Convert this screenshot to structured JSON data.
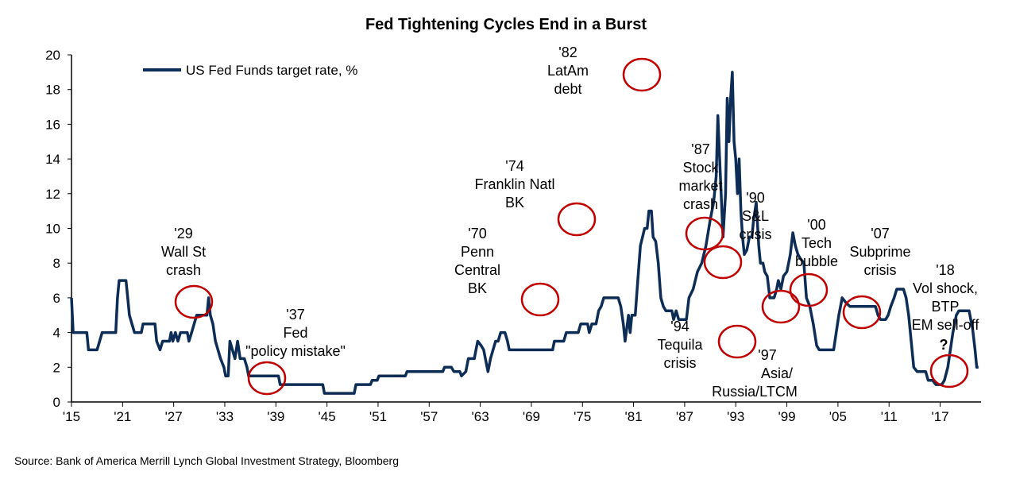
{
  "chart_data": {
    "type": "line",
    "title": "Fed Tightening Cycles End in a Burst",
    "source": "Source: Bank of America Merrill Lynch Global Investment Strategy, Bloomberg",
    "legend": {
      "placement": "top-left",
      "label": "US Fed Funds target rate, %"
    },
    "line_color": "#0d2d56",
    "circle_color": "#c00000",
    "grid": false,
    "xlim": [
      1915,
      2021.8
    ],
    "ylim": [
      0,
      20
    ],
    "yticks": [
      0,
      2,
      4,
      6,
      8,
      10,
      12,
      14,
      16,
      18,
      20
    ],
    "xticks": [
      1915,
      1921,
      1927,
      1933,
      1939,
      1945,
      1951,
      1957,
      1963,
      1969,
      1975,
      1981,
      1987,
      1993,
      1999,
      2005,
      2011,
      2017
    ],
    "xtick_labels": [
      "'15",
      "'21",
      "'27",
      "'33",
      "'39",
      "'45",
      "'51",
      "'57",
      "'63",
      "'69",
      "'75",
      "'81",
      "'87",
      "'93",
      "'99",
      "'05",
      "'11",
      "'17"
    ],
    "series": [
      {
        "name": "US Fed Funds target rate, %",
        "points": [
          [
            1915,
            6
          ],
          [
            1915.2,
            4
          ],
          [
            1916.8,
            4
          ],
          [
            1917,
            3
          ],
          [
            1918,
            3
          ],
          [
            1918.3,
            3.5
          ],
          [
            1918.6,
            4
          ],
          [
            1920.2,
            4
          ],
          [
            1920.4,
            6
          ],
          [
            1920.6,
            7
          ],
          [
            1921.4,
            7
          ],
          [
            1921.6,
            6
          ],
          [
            1921.8,
            5
          ],
          [
            1922.1,
            4.5
          ],
          [
            1922.4,
            4
          ],
          [
            1923.2,
            4
          ],
          [
            1923.4,
            4.5
          ],
          [
            1924.8,
            4.5
          ],
          [
            1925,
            3.5
          ],
          [
            1925.4,
            3
          ],
          [
            1925.7,
            3.5
          ],
          [
            1926.5,
            3.5
          ],
          [
            1926.7,
            4
          ],
          [
            1926.9,
            3.5
          ],
          [
            1927.2,
            4
          ],
          [
            1927.5,
            3.5
          ],
          [
            1927.8,
            4
          ],
          [
            1928.6,
            4
          ],
          [
            1928.8,
            3.5
          ],
          [
            1929.1,
            4
          ],
          [
            1929.4,
            4.5
          ],
          [
            1929.7,
            5
          ],
          [
            1930.9,
            5
          ],
          [
            1931.1,
            6
          ],
          [
            1931.3,
            5
          ],
          [
            1931.6,
            4.5
          ],
          [
            1931.9,
            3.5
          ],
          [
            1932.2,
            3
          ],
          [
            1932.5,
            2.5
          ],
          [
            1932.9,
            2
          ],
          [
            1933.1,
            1.5
          ],
          [
            1933.4,
            1.5
          ],
          [
            1933.6,
            3.5
          ],
          [
            1933.9,
            3
          ],
          [
            1934.2,
            2.5
          ],
          [
            1934.5,
            3.5
          ],
          [
            1934.8,
            2.5
          ],
          [
            1935.3,
            2.5
          ],
          [
            1935.6,
            2
          ],
          [
            1935.8,
            1.5
          ],
          [
            1939.3,
            1.5
          ],
          [
            1939.5,
            1
          ],
          [
            1944.5,
            1
          ],
          [
            1944.7,
            0.5
          ],
          [
            1948.2,
            0.5
          ],
          [
            1948.4,
            1
          ],
          [
            1950.1,
            1
          ],
          [
            1950.3,
            1.25
          ],
          [
            1950.9,
            1.25
          ],
          [
            1951.1,
            1.5
          ],
          [
            1954.2,
            1.5
          ],
          [
            1954.4,
            1.75
          ],
          [
            1958.6,
            1.75
          ],
          [
            1958.8,
            2
          ],
          [
            1959.6,
            2
          ],
          [
            1959.9,
            1.75
          ],
          [
            1960.6,
            1.75
          ],
          [
            1960.8,
            1.5
          ],
          [
            1961.3,
            1.75
          ],
          [
            1961.6,
            2.5
          ],
          [
            1962.3,
            2.5
          ],
          [
            1962.5,
            3
          ],
          [
            1962.7,
            3.5
          ],
          [
            1963.1,
            3.25
          ],
          [
            1963.4,
            3
          ],
          [
            1963.7,
            2.25
          ],
          [
            1963.9,
            1.75
          ],
          [
            1964.2,
            2.5
          ],
          [
            1964.5,
            3
          ],
          [
            1964.8,
            3.5
          ],
          [
            1965.1,
            3.5
          ],
          [
            1965.4,
            4
          ],
          [
            1965.9,
            4
          ],
          [
            1966.2,
            3.5
          ],
          [
            1966.4,
            3
          ],
          [
            1971.5,
            3
          ],
          [
            1971.7,
            3.5
          ],
          [
            1972.8,
            3.5
          ],
          [
            1973.1,
            4
          ],
          [
            1974.5,
            4
          ],
          [
            1974.8,
            4.5
          ],
          [
            1975.6,
            4.5
          ],
          [
            1975.8,
            4
          ],
          [
            1976.1,
            4.5
          ],
          [
            1976.6,
            4.5
          ],
          [
            1976.9,
            5.25
          ],
          [
            1977.2,
            5.5
          ],
          [
            1977.5,
            6
          ],
          [
            1979.2,
            6
          ],
          [
            1979.5,
            5.5
          ],
          [
            1979.8,
            4.5
          ],
          [
            1980,
            3.5
          ],
          [
            1980.4,
            5
          ],
          [
            1980.6,
            4
          ],
          [
            1980.8,
            5
          ],
          [
            1980.9,
            5
          ],
          [
            1981.2,
            5
          ],
          [
            1981.5,
            7
          ],
          [
            1981.8,
            9
          ],
          [
            1982.3,
            10
          ],
          [
            1982.6,
            10
          ],
          [
            1982.8,
            11
          ],
          [
            1983.1,
            11
          ],
          [
            1983.3,
            9.5
          ],
          [
            1983.6,
            9.25
          ],
          [
            1983.9,
            8
          ],
          [
            1984.2,
            6
          ],
          [
            1984.5,
            5.5
          ],
          [
            1984.8,
            5.25
          ],
          [
            1985.5,
            5.25
          ],
          [
            1985.7,
            4.75
          ],
          [
            1986,
            5.25
          ],
          [
            1986.3,
            4.75
          ],
          [
            1987.2,
            4.75
          ],
          [
            1987.5,
            6
          ],
          [
            1988,
            6.5
          ],
          [
            1988.5,
            7.5
          ],
          [
            1989,
            8
          ],
          [
            1989.5,
            9
          ],
          [
            1990,
            10.5
          ],
          [
            1990.4,
            11.5
          ],
          [
            1990.7,
            13
          ],
          [
            1990.9,
            16.5
          ],
          [
            1991.2,
            13
          ],
          [
            1991.5,
            9.5
          ],
          [
            1991.8,
            12
          ],
          [
            1992,
            17.5
          ],
          [
            1992.2,
            15
          ],
          [
            1992.4,
            17.5
          ],
          [
            1992.6,
            19
          ],
          [
            1992.8,
            15
          ],
          [
            1993,
            14
          ],
          [
            1993.2,
            12
          ],
          [
            1993.4,
            14
          ],
          [
            1993.6,
            11
          ],
          [
            1993.8,
            9.5
          ],
          [
            1994,
            8.5
          ],
          [
            1994.3,
            8.75
          ],
          [
            1994.6,
            9.5
          ],
          [
            1994.9,
            9.5
          ],
          [
            1995.1,
            10.5
          ],
          [
            1995.4,
            11.5
          ],
          [
            1995.7,
            9
          ],
          [
            1995.9,
            8
          ],
          [
            1996.2,
            8
          ],
          [
            1996.4,
            7.5
          ],
          [
            1996.7,
            7.25
          ],
          [
            1997,
            6
          ],
          [
            1997.5,
            6
          ],
          [
            1997.8,
            6.5
          ],
          [
            1998,
            7
          ],
          [
            1998.3,
            6.5
          ],
          [
            1998.6,
            7.25
          ],
          [
            1999,
            7.5
          ],
          [
            1999.4,
            8.5
          ],
          [
            1999.7,
            9.75
          ],
          [
            2000,
            9
          ],
          [
            2000.3,
            8.5
          ],
          [
            2000.6,
            8.25
          ],
          [
            2001,
            8
          ],
          [
            2001.3,
            6
          ],
          [
            2001.7,
            5.5
          ],
          [
            2002.1,
            4.5
          ],
          [
            2002.5,
            3.25
          ],
          [
            2002.8,
            3
          ],
          [
            2004.5,
            3
          ],
          [
            2004.8,
            4
          ],
          [
            2005.1,
            5
          ],
          [
            2005.5,
            6
          ],
          [
            2005.9,
            5.75
          ],
          [
            2006.4,
            5.5
          ],
          [
            2007.6,
            5.5
          ],
          [
            2009.4,
            5.5
          ],
          [
            2009.7,
            5
          ],
          [
            2010,
            4.75
          ],
          [
            2010.6,
            4.75
          ],
          [
            2010.9,
            5
          ],
          [
            2011.2,
            5.5
          ],
          [
            2011.6,
            6
          ],
          [
            2011.9,
            6.5
          ],
          [
            2012.7,
            6.5
          ],
          [
            2013,
            6
          ],
          [
            2013.3,
            5
          ],
          [
            2013.6,
            3.5
          ],
          [
            2013.9,
            2
          ],
          [
            2014.3,
            1.75
          ],
          [
            2015.3,
            1.75
          ],
          [
            2015.6,
            1.25
          ],
          [
            2016.1,
            1.25
          ],
          [
            2016.5,
            1
          ],
          [
            2017.2,
            1
          ],
          [
            2017.5,
            1.25
          ],
          [
            2017.9,
            2
          ],
          [
            2018.2,
            3
          ],
          [
            2018.5,
            4
          ],
          [
            2018.9,
            5
          ],
          [
            2019.2,
            5.25
          ],
          [
            2020.4,
            5.25
          ],
          [
            2020.6,
            4.75
          ],
          [
            2020.8,
            4.25
          ],
          [
            2021.1,
            3
          ],
          [
            2021.3,
            2
          ],
          [
            2021.5,
            2
          ]
        ]
      }
    ],
    "annotations": [
      {
        "lines": [
          "'29",
          "Wall St",
          "crash"
        ]
      },
      {
        "lines": [
          "'37",
          "Fed",
          "\"policy mistake\""
        ]
      },
      {
        "lines": [
          "'70",
          "Penn",
          "Central",
          "BK"
        ]
      },
      {
        "lines": [
          "'74",
          "Franklin Natl",
          "BK"
        ]
      },
      {
        "lines": [
          "'82",
          "LatAm",
          "debt"
        ]
      },
      {
        "lines": [
          "'87",
          "Stock",
          "market",
          "crash"
        ]
      },
      {
        "lines": [
          "'90",
          "S&L",
          "crisis"
        ]
      },
      {
        "lines": [
          "'94",
          "Tequila",
          "crisis"
        ]
      },
      {
        "lines": [
          "'97",
          "Asia/",
          "Russia/LTCM"
        ]
      },
      {
        "lines": [
          "'00",
          "Tech",
          "bubble"
        ]
      },
      {
        "lines": [
          "'07",
          "Subprime",
          "crisis"
        ]
      },
      {
        "lines": [
          "'18",
          "Vol shock,",
          "BTP",
          "EM sell-off"
        ]
      },
      {
        "lines": [
          "?"
        ]
      }
    ]
  }
}
